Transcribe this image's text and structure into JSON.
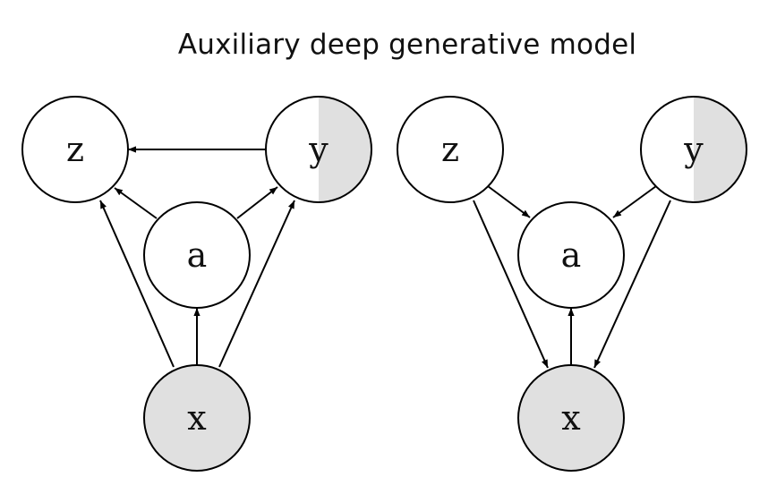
{
  "title": "Auxiliary deep generative model",
  "colors": {
    "stroke": "#000000",
    "observed_fill": "#e0e0e0",
    "latent_fill": "#ffffff"
  },
  "left_graph": {
    "nodes": [
      {
        "id": "z",
        "label": "z",
        "observed": "none"
      },
      {
        "id": "y",
        "label": "y",
        "observed": "half"
      },
      {
        "id": "a",
        "label": "a",
        "observed": "none"
      },
      {
        "id": "x",
        "label": "x",
        "observed": "full"
      }
    ],
    "edges": [
      {
        "from": "y",
        "to": "z"
      },
      {
        "from": "a",
        "to": "z"
      },
      {
        "from": "a",
        "to": "y"
      },
      {
        "from": "x",
        "to": "a"
      },
      {
        "from": "x",
        "to": "z"
      },
      {
        "from": "x",
        "to": "y"
      }
    ]
  },
  "right_graph": {
    "nodes": [
      {
        "id": "z",
        "label": "z",
        "observed": "none"
      },
      {
        "id": "y",
        "label": "y",
        "observed": "half"
      },
      {
        "id": "a",
        "label": "a",
        "observed": "none"
      },
      {
        "id": "x",
        "label": "x",
        "observed": "full"
      }
    ],
    "edges": [
      {
        "from": "z",
        "to": "a"
      },
      {
        "from": "y",
        "to": "a"
      },
      {
        "from": "x",
        "to": "a"
      },
      {
        "from": "z",
        "to": "x"
      },
      {
        "from": "y",
        "to": "x"
      }
    ]
  }
}
